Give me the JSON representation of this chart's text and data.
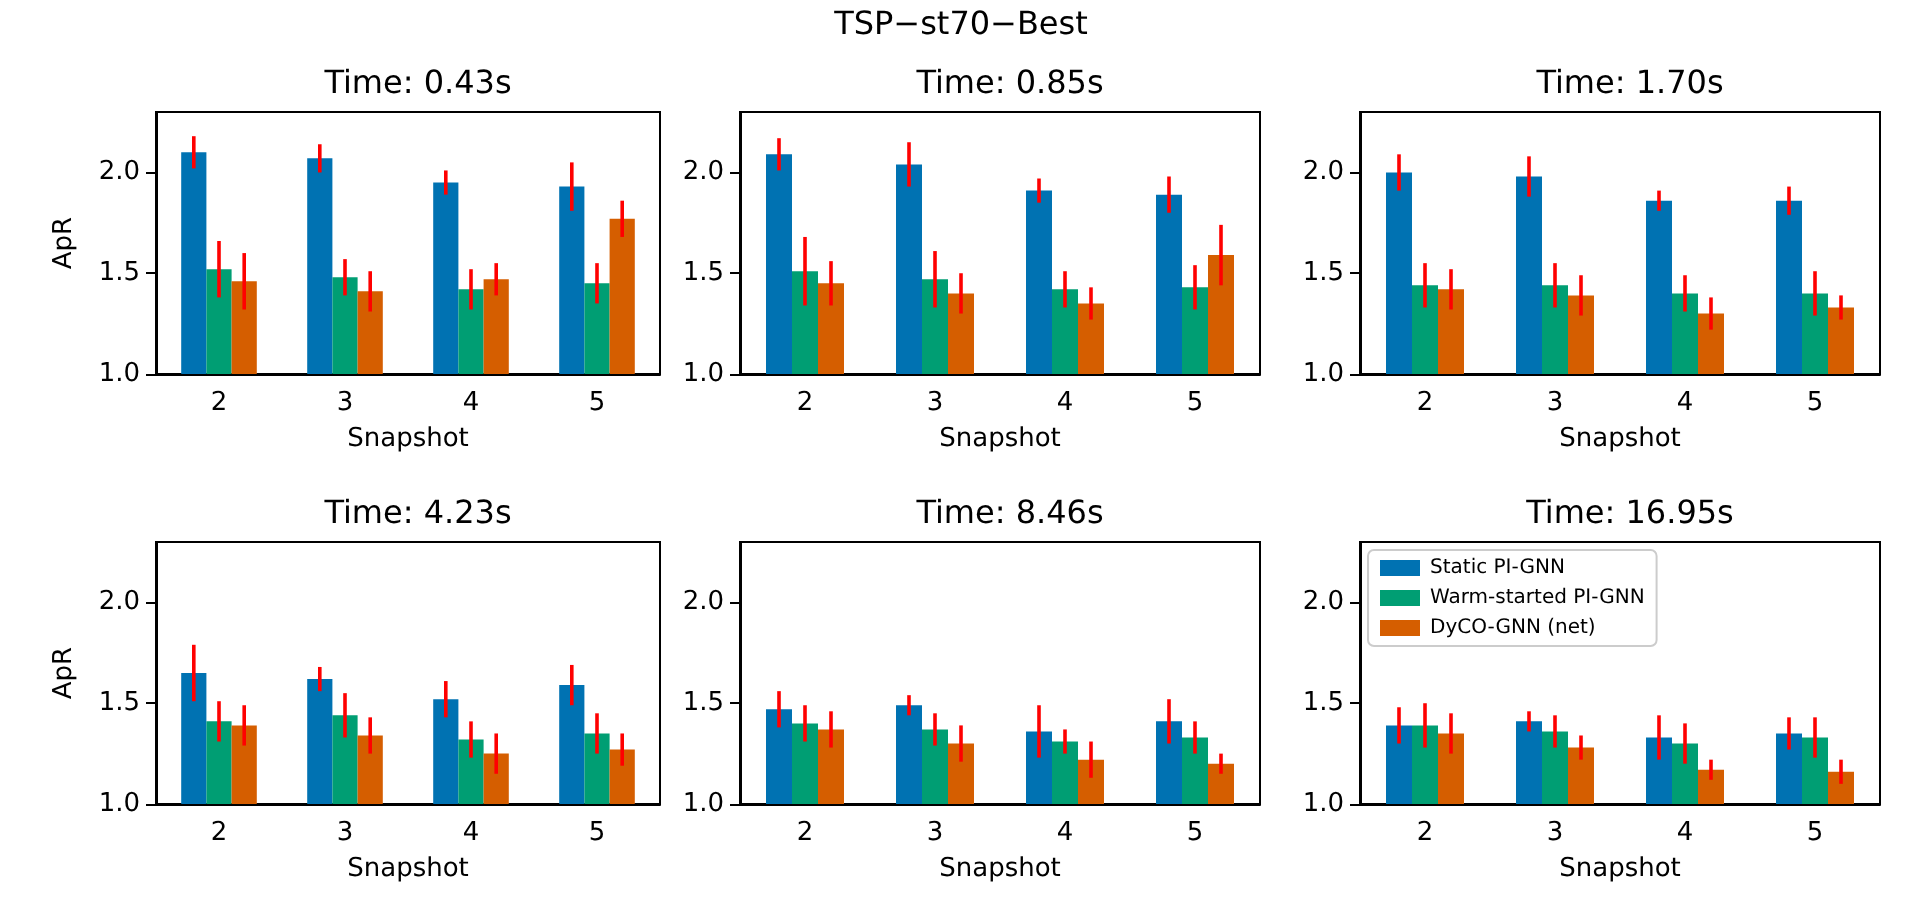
{
  "chart_data": [
    {
      "type": "bar",
      "title": "Time: 0.43s",
      "xlabel": "Snapshot",
      "ylabel": "ApR",
      "annotations": [
        "TSP−st70−Best"
      ],
      "categories": [
        "2",
        "3",
        "4",
        "5"
      ],
      "ylim": [
        1.0,
        2.3
      ],
      "yticks": [
        {
          "value": 1.0,
          "label": "1.0"
        },
        {
          "value": 1.5,
          "label": "1.5"
        },
        {
          "value": 2.0,
          "label": "2.0"
        }
      ],
      "grid": false,
      "legend": false,
      "series": [
        {
          "color": "#0072b2",
          "values": [
            2.1,
            2.07,
            1.95,
            1.93
          ],
          "errors": [
            0.08,
            0.07,
            0.06,
            0.12
          ]
        },
        {
          "color": "#009e73",
          "values": [
            1.52,
            1.48,
            1.42,
            1.45
          ],
          "errors": [
            0.14,
            0.09,
            0.1,
            0.1
          ]
        },
        {
          "color": "#d55e00",
          "values": [
            1.46,
            1.41,
            1.47,
            1.77
          ],
          "errors": [
            0.14,
            0.1,
            0.08,
            0.09
          ]
        }
      ]
    },
    {
      "type": "bar",
      "title": "Time: 0.85s",
      "xlabel": "Snapshot",
      "categories": [
        "2",
        "3",
        "4",
        "5"
      ],
      "ylim": [
        1.0,
        2.3
      ],
      "yticks": [
        {
          "value": 1.0,
          "label": "1.0"
        },
        {
          "value": 1.5,
          "label": "1.5"
        },
        {
          "value": 2.0,
          "label": "2.0"
        }
      ],
      "grid": false,
      "legend": false,
      "series": [
        {
          "color": "#0072b2",
          "values": [
            2.09,
            2.04,
            1.91,
            1.89
          ],
          "errors": [
            0.08,
            0.11,
            0.06,
            0.09
          ]
        },
        {
          "color": "#009e73",
          "values": [
            1.51,
            1.47,
            1.42,
            1.43
          ],
          "errors": [
            0.17,
            0.14,
            0.09,
            0.11
          ]
        },
        {
          "color": "#d55e00",
          "values": [
            1.45,
            1.4,
            1.35,
            1.59
          ],
          "errors": [
            0.11,
            0.1,
            0.08,
            0.15
          ]
        }
      ]
    },
    {
      "type": "bar",
      "title": "Time: 1.70s",
      "xlabel": "Snapshot",
      "categories": [
        "2",
        "3",
        "4",
        "5"
      ],
      "ylim": [
        1.0,
        2.3
      ],
      "yticks": [
        {
          "value": 1.0,
          "label": "1.0"
        },
        {
          "value": 1.5,
          "label": "1.5"
        },
        {
          "value": 2.0,
          "label": "2.0"
        }
      ],
      "grid": false,
      "legend": false,
      "series": [
        {
          "color": "#0072b2",
          "values": [
            2.0,
            1.98,
            1.86,
            1.86
          ],
          "errors": [
            0.09,
            0.1,
            0.05,
            0.07
          ]
        },
        {
          "color": "#009e73",
          "values": [
            1.44,
            1.44,
            1.4,
            1.4
          ],
          "errors": [
            0.11,
            0.11,
            0.09,
            0.11
          ]
        },
        {
          "color": "#d55e00",
          "values": [
            1.42,
            1.39,
            1.3,
            1.33
          ],
          "errors": [
            0.1,
            0.1,
            0.08,
            0.06
          ]
        }
      ]
    },
    {
      "type": "bar",
      "title": "Time: 4.23s",
      "xlabel": "Snapshot",
      "ylabel": "ApR",
      "categories": [
        "2",
        "3",
        "4",
        "5"
      ],
      "ylim": [
        1.0,
        2.3
      ],
      "yticks": [
        {
          "value": 1.0,
          "label": "1.0"
        },
        {
          "value": 1.5,
          "label": "1.5"
        },
        {
          "value": 2.0,
          "label": "2.0"
        }
      ],
      "grid": false,
      "legend": false,
      "series": [
        {
          "color": "#0072b2",
          "values": [
            1.65,
            1.62,
            1.52,
            1.59
          ],
          "errors": [
            0.14,
            0.06,
            0.09,
            0.1
          ]
        },
        {
          "color": "#009e73",
          "values": [
            1.41,
            1.44,
            1.32,
            1.35
          ],
          "errors": [
            0.1,
            0.11,
            0.09,
            0.1
          ]
        },
        {
          "color": "#d55e00",
          "values": [
            1.39,
            1.34,
            1.25,
            1.27
          ],
          "errors": [
            0.1,
            0.09,
            0.1,
            0.08
          ]
        }
      ]
    },
    {
      "type": "bar",
      "title": "Time: 8.46s",
      "xlabel": "Snapshot",
      "categories": [
        "2",
        "3",
        "4",
        "5"
      ],
      "ylim": [
        1.0,
        2.3
      ],
      "yticks": [
        {
          "value": 1.0,
          "label": "1.0"
        },
        {
          "value": 1.5,
          "label": "1.5"
        },
        {
          "value": 2.0,
          "label": "2.0"
        }
      ],
      "grid": false,
      "legend": false,
      "series": [
        {
          "color": "#0072b2",
          "values": [
            1.47,
            1.49,
            1.36,
            1.41
          ],
          "errors": [
            0.09,
            0.05,
            0.13,
            0.11
          ]
        },
        {
          "color": "#009e73",
          "values": [
            1.4,
            1.37,
            1.31,
            1.33
          ],
          "errors": [
            0.09,
            0.08,
            0.06,
            0.08
          ]
        },
        {
          "color": "#d55e00",
          "values": [
            1.37,
            1.3,
            1.22,
            1.2
          ],
          "errors": [
            0.09,
            0.09,
            0.09,
            0.05
          ]
        }
      ]
    },
    {
      "type": "bar",
      "title": "Time: 16.95s",
      "xlabel": "Snapshot",
      "categories": [
        "2",
        "3",
        "4",
        "5"
      ],
      "ylim": [
        1.0,
        2.3
      ],
      "yticks": [
        {
          "value": 1.0,
          "label": "1.0"
        },
        {
          "value": 1.5,
          "label": "1.5"
        },
        {
          "value": 2.0,
          "label": "2.0"
        }
      ],
      "grid": false,
      "legend": "top left",
      "series": [
        {
          "name": "Static PI-GNN",
          "color": "#0072b2",
          "values": [
            1.39,
            1.41,
            1.33,
            1.35
          ],
          "errors": [
            0.09,
            0.05,
            0.11,
            0.08
          ]
        },
        {
          "name": "Warm-started PI-GNN",
          "color": "#009e73",
          "values": [
            1.39,
            1.36,
            1.3,
            1.33
          ],
          "errors": [
            0.11,
            0.08,
            0.1,
            0.1
          ]
        },
        {
          "name": "DyCO-GNN (net)",
          "color": "#d55e00",
          "values": [
            1.35,
            1.28,
            1.17,
            1.16
          ],
          "errors": [
            0.1,
            0.06,
            0.05,
            0.06
          ]
        }
      ]
    }
  ]
}
